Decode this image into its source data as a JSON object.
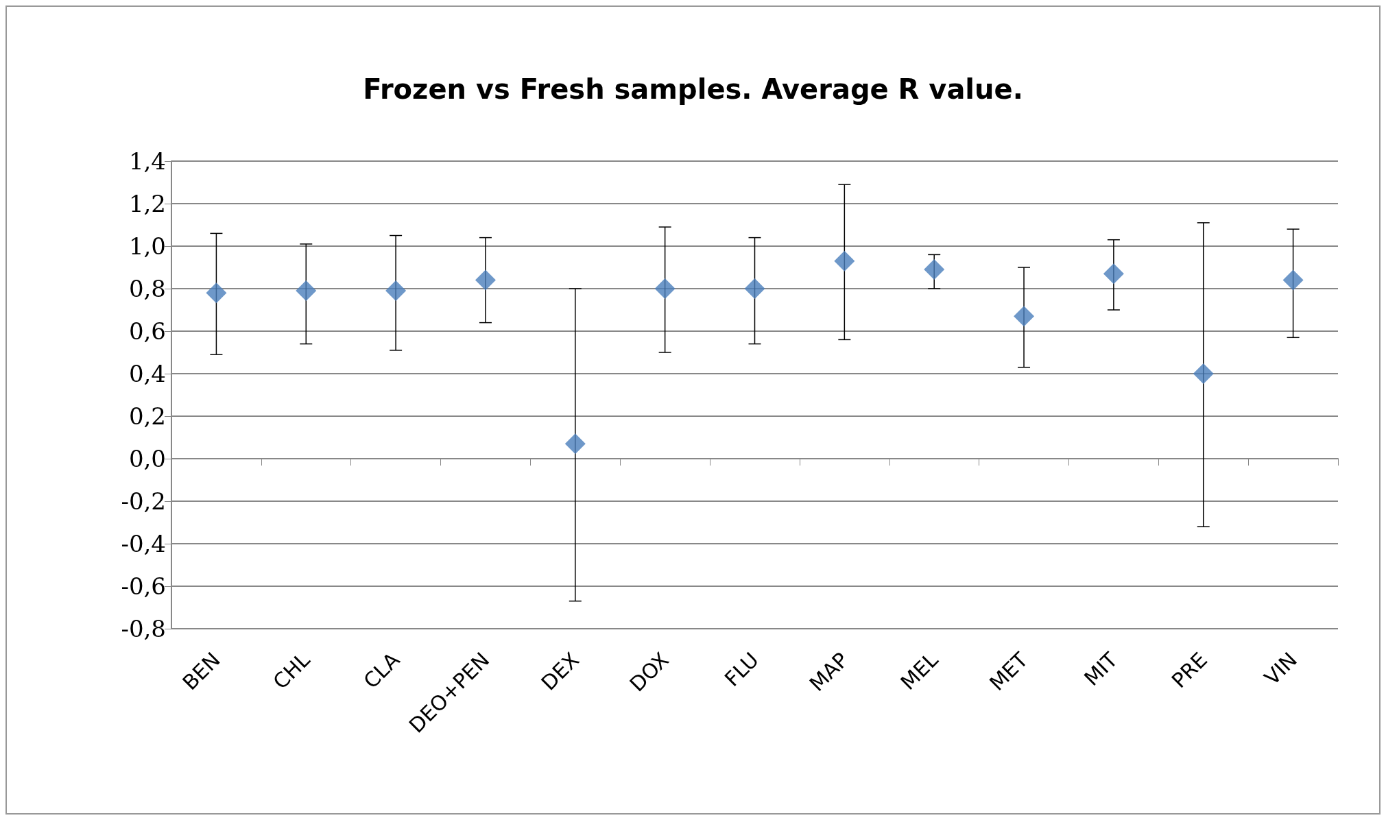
{
  "chart_data": {
    "type": "scatter",
    "title": "Frozen vs Fresh samples. Average R value.",
    "categories": [
      "BEN",
      "CHL",
      "CLA",
      "DEO+PEN",
      "DEX",
      "DOX",
      "FLU",
      "MAP",
      "MEL",
      "MET",
      "MIT",
      "PRE",
      "VIN"
    ],
    "series": [
      {
        "color": "#4a7ebb",
        "values": [
          0.78,
          0.79,
          0.79,
          0.84,
          0.07,
          0.8,
          0.8,
          0.93,
          0.89,
          0.67,
          0.87,
          0.4,
          0.84
        ],
        "errors": [
          [
            0.49,
            1.06
          ],
          [
            0.54,
            1.01
          ],
          [
            0.51,
            1.05
          ],
          [
            0.64,
            1.04
          ],
          [
            -0.67,
            0.8
          ],
          [
            0.5,
            1.09
          ],
          [
            0.54,
            1.04
          ],
          [
            0.56,
            1.29
          ],
          [
            0.8,
            0.96
          ],
          [
            0.43,
            0.9
          ],
          [
            0.7,
            1.03
          ],
          [
            -0.32,
            1.11
          ],
          [
            0.57,
            1.08
          ]
        ]
      }
    ],
    "ylim": [
      -0.8,
      1.4
    ],
    "yticks": [
      {
        "value": -0.8,
        "label": "-0,8"
      },
      {
        "value": -0.6,
        "label": "-0,6"
      },
      {
        "value": -0.4,
        "label": "-0,4"
      },
      {
        "value": -0.2,
        "label": "-0,2"
      },
      {
        "value": 0,
        "label": "0,0"
      },
      {
        "value": 0.2,
        "label": "0,2"
      },
      {
        "value": 0.4,
        "label": "0,4"
      },
      {
        "value": 0.6,
        "label": "0,6"
      },
      {
        "value": 0.8,
        "label": "0,8"
      },
      {
        "value": 1,
        "label": "1,0"
      },
      {
        "value": 1.2,
        "label": "1,2"
      },
      {
        "value": 1.4,
        "label": "1,4"
      }
    ],
    "grid": "y",
    "marker": "diamond"
  }
}
